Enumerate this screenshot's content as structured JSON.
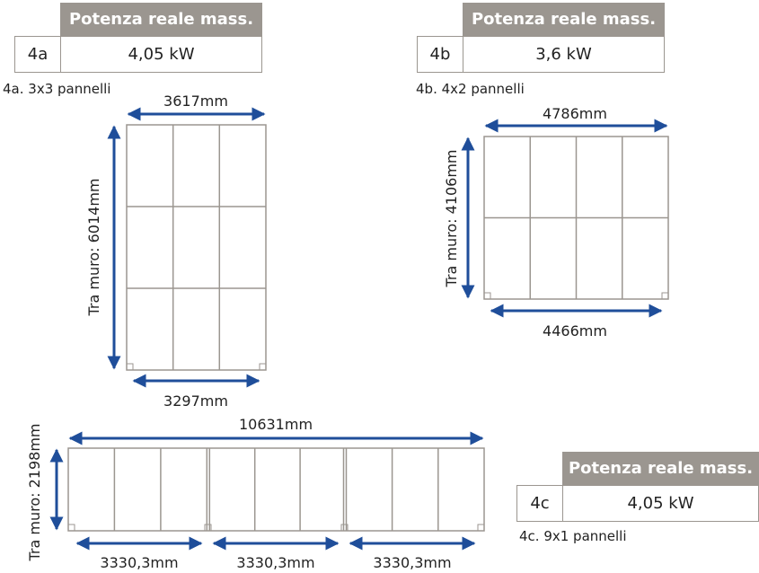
{
  "tables": [
    {
      "id": "4a",
      "header": "Potenza reale mass.",
      "code": "4a",
      "value": "4,05 kW"
    },
    {
      "id": "4b",
      "header": "Potenza reale mass.",
      "code": "4b",
      "value": "3,6 kW"
    },
    {
      "id": "4c",
      "header": "Potenza reale mass.",
      "code": "4c",
      "value": "4,05 kW"
    }
  ],
  "layouts": [
    {
      "id": "4a",
      "caption": "4a. 3x3 pannelli",
      "cols": 3,
      "rows": 3,
      "top_dim": "3617mm",
      "bottom_dim": "3297mm",
      "side_dim": "Tra muro: 6014mm"
    },
    {
      "id": "4b",
      "caption": "4b. 4x2 pannelli",
      "cols": 4,
      "rows": 2,
      "top_dim": "4786mm",
      "bottom_dim": "4466mm",
      "side_dim": "Tra muro: 4106mm"
    },
    {
      "id": "4c",
      "caption": "4c. 9x1 pannelli",
      "cols": 9,
      "rows": 1,
      "top_dim": "10631mm",
      "bottom_dims": [
        "3330,3mm",
        "3330,3mm",
        "3330,3mm"
      ],
      "side_dim": "Tra muro: 2198mm"
    }
  ],
  "colors": {
    "arrow": "#1f4e9a",
    "panel_stroke": "#9b9690",
    "header_bg": "#9b9690"
  }
}
